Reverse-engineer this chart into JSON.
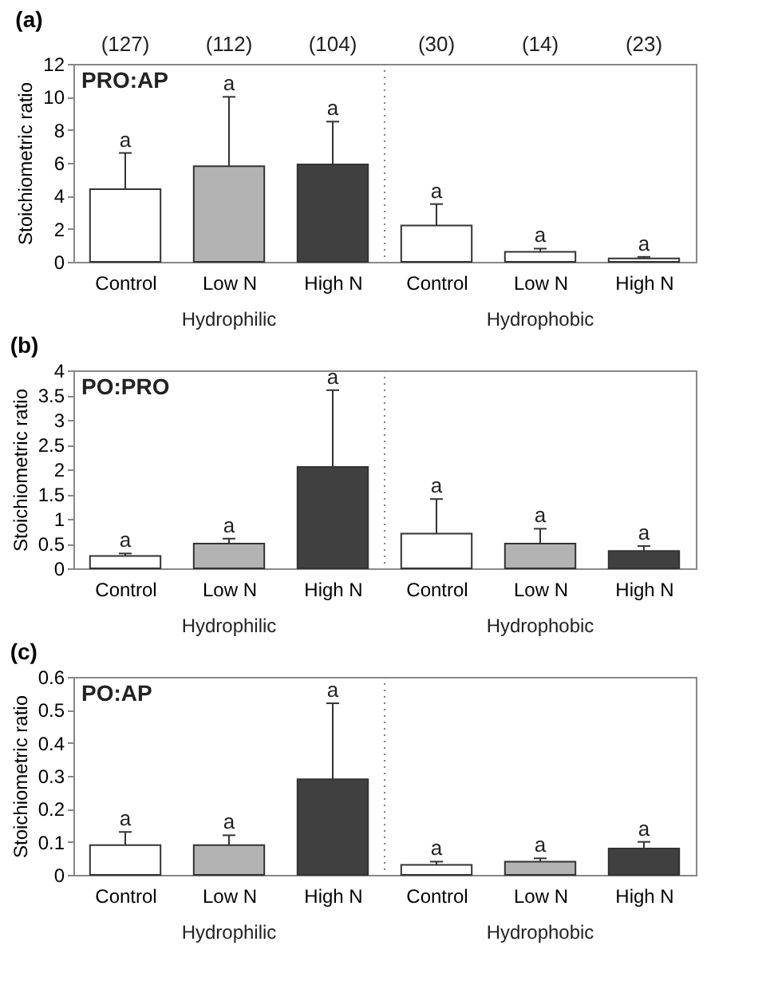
{
  "chart_data": [
    {
      "type": "bar",
      "title": "(a)",
      "subtitle": "PRO:AP",
      "ylabel": "Stoichiometric ratio",
      "categories": [
        "Control",
        "Low N",
        "High N",
        "Control",
        "Low N",
        "High N"
      ],
      "values": [
        4.4,
        5.8,
        5.9,
        2.2,
        0.6,
        0.2
      ],
      "errors": [
        [
          4.4,
          6.6
        ],
        [
          5.8,
          10.0
        ],
        [
          5.9,
          8.5
        ],
        [
          2.2,
          3.5
        ],
        [
          0.6,
          0.8
        ],
        [
          0.2,
          0.3
        ]
      ],
      "colors": [
        "#ffffff",
        "#b3b3b3",
        "#404040",
        "#ffffff",
        "#ffffff",
        "#ffffff"
      ],
      "ylim": [
        0,
        12
      ],
      "yticks": [
        0,
        2,
        4,
        6,
        8,
        10,
        12
      ],
      "annotations": [
        "(127)",
        "(112)",
        "(104)",
        "(30)",
        "(14)",
        "(23)",
        "a",
        "a",
        "a",
        "a",
        "a",
        "a",
        "Hydrophilic",
        "Hydrophobic"
      ]
    },
    {
      "type": "bar",
      "title": "(b)",
      "subtitle": "PO:PRO",
      "ylabel": "Stoichiometric ratio",
      "categories": [
        "Control",
        "Low N",
        "High N",
        "Control",
        "Low N",
        "High N"
      ],
      "values": [
        0.25,
        0.5,
        2.05,
        0.7,
        0.5,
        0.35
      ],
      "errors": [
        [
          0.25,
          0.3
        ],
        [
          0.5,
          0.6
        ],
        [
          2.05,
          3.6
        ],
        [
          0.7,
          1.4
        ],
        [
          0.5,
          0.8
        ],
        [
          0.35,
          0.45
        ]
      ],
      "colors": [
        "#ffffff",
        "#b3b3b3",
        "#404040",
        "#ffffff",
        "#b3b3b3",
        "#404040"
      ],
      "ylim": [
        0,
        4
      ],
      "yticks": [
        0,
        0.5,
        1,
        1.5,
        2,
        2.5,
        3,
        3.5,
        4
      ],
      "annotations": [
        "a",
        "a",
        "a",
        "a",
        "a",
        "a",
        "Hydrophilic",
        "Hydrophobic"
      ]
    },
    {
      "type": "bar",
      "title": "(c)",
      "subtitle": "PO:AP",
      "ylabel": "Stoichiometric ratio",
      "categories": [
        "Control",
        "Low N",
        "High N",
        "Control",
        "Low N",
        "High N"
      ],
      "values": [
        0.09,
        0.09,
        0.29,
        0.03,
        0.04,
        0.08
      ],
      "errors": [
        [
          0.09,
          0.13
        ],
        [
          0.09,
          0.12
        ],
        [
          0.29,
          0.52
        ],
        [
          0.03,
          0.04
        ],
        [
          0.04,
          0.05
        ],
        [
          0.08,
          0.1
        ]
      ],
      "colors": [
        "#ffffff",
        "#b3b3b3",
        "#404040",
        "#ffffff",
        "#b3b3b3",
        "#404040"
      ],
      "ylim": [
        0,
        0.6
      ],
      "yticks": [
        0,
        0.1,
        0.2,
        0.3,
        0.4,
        0.5,
        0.6
      ],
      "annotations": [
        "a",
        "a",
        "a",
        "a",
        "a",
        "a",
        "Hydrophilic",
        "Hydrophobic"
      ]
    }
  ]
}
